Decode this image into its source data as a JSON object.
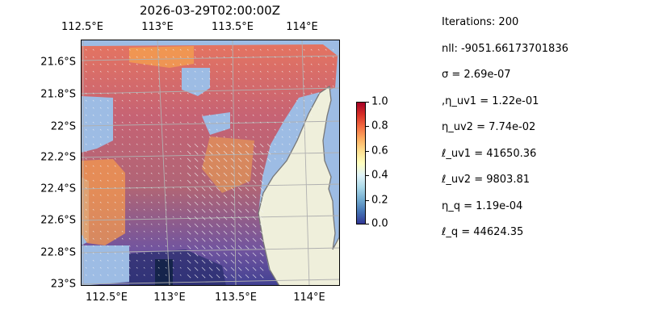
{
  "title": "2026-03-29T02:00:00Z",
  "map": {
    "lon_labels": [
      "112.5°E",
      "113°E",
      "113.5°E",
      "114°E"
    ],
    "lat_labels": [
      "21.6°S",
      "21.8°S",
      "22°S",
      "22.2°S",
      "22.4°S",
      "22.6°S",
      "22.8°S",
      "23°S"
    ],
    "colors": {
      "land": "#efefdb",
      "water": "#9dbce4",
      "coastline": "#777777",
      "grid": "#b0b0b0",
      "vectors": "#ffffff"
    }
  },
  "colorbar": {
    "ticks": [
      "1.0",
      "0.8",
      "0.6",
      "0.4",
      "0.2",
      "0.0"
    ],
    "cmap": [
      "#313695",
      "#4575b4",
      "#74add1",
      "#abd9e9",
      "#e0f3f8",
      "#ffffbf",
      "#fee090",
      "#fdae61",
      "#f46d43",
      "#d73027",
      "#a50026"
    ]
  },
  "params": [
    "Iterations: 200",
    "nll: -9051.66173701836",
    "σ = 2.69e-07",
    ",η_uv1 = 1.22e-01",
    "η_uv2 = 7.74e-02",
    "ℓ_uv1 = 41650.36",
    "ℓ_uv2 = 9803.81",
    "η_q = 1.19e-04",
    "ℓ_q = 44624.35"
  ]
}
